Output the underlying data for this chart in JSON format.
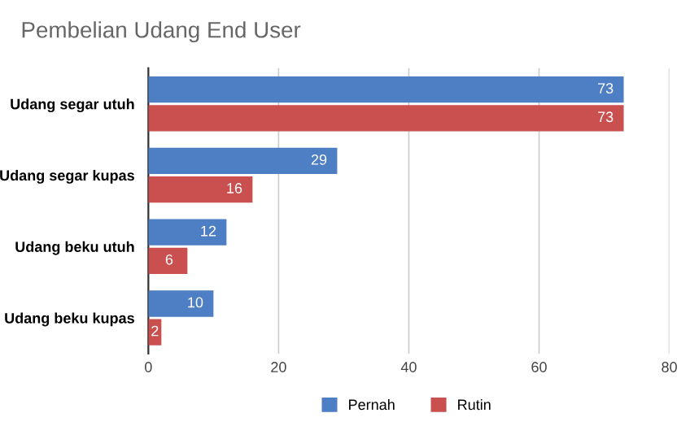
{
  "chart_data": {
    "type": "bar",
    "orientation": "horizontal",
    "title": "Pembelian Udang End User",
    "categories": [
      "Udang segar utuh",
      "Udang segar kupas",
      "Udang beku utuh",
      "Udang beku kupas"
    ],
    "series": [
      {
        "name": "Pernah",
        "color": "#4e7ec3",
        "values": [
          73,
          29,
          12,
          10
        ]
      },
      {
        "name": "Rutin",
        "color": "#c9504f",
        "values": [
          73,
          16,
          6,
          2
        ]
      }
    ],
    "xlim": [
      0,
      80
    ],
    "xticks": [
      0,
      20,
      40,
      60,
      80
    ],
    "grid": "x",
    "legend": "bottom",
    "data_labels": true
  }
}
